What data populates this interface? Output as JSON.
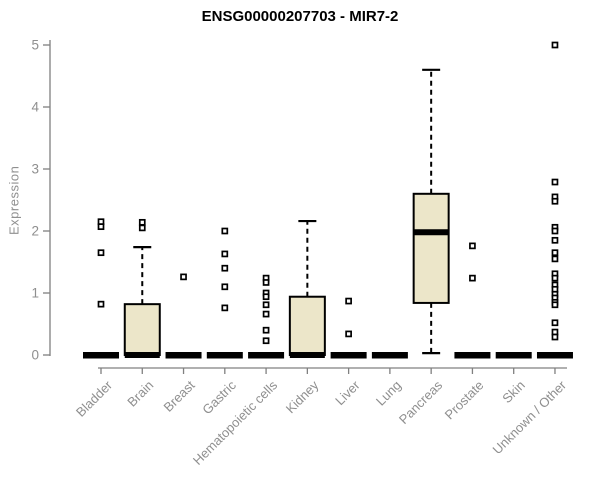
{
  "title": "ENSG00000207703 - MIR7-2",
  "ylabel": "Expression",
  "colors": {
    "background": "#ffffff",
    "title": "#000000",
    "axis_line": "#808080",
    "tick_label": "#8f8f8f",
    "box_fill": "#ece6c9",
    "box_border": "#000000",
    "median": "#000000",
    "outlier": "#000000"
  },
  "chart_data": {
    "type": "boxplot",
    "title": "ENSG00000207703 - MIR7-2",
    "xlabel": "",
    "ylabel": "Expression",
    "ylim": [
      0,
      5
    ],
    "yticks": [
      0,
      1,
      2,
      3,
      4,
      5
    ],
    "grid": false,
    "legend": false,
    "categories": [
      "Bladder",
      "Brain",
      "Breast",
      "Gastric",
      "Hematopoietic cells",
      "Kidney",
      "Liver",
      "Lung",
      "Pancreas",
      "Prostate",
      "Skin",
      "Unknown / Other"
    ],
    "boxes": [
      {
        "category": "Bladder",
        "q1": 0,
        "median": 0,
        "q3": 0,
        "whisker_low": 0,
        "whisker_high": 0,
        "outliers": [
          2.15,
          2.07,
          1.65,
          0.82
        ]
      },
      {
        "category": "Brain",
        "q1": 0,
        "median": 0,
        "q3": 0.82,
        "whisker_low": 0,
        "whisker_high": 1.74,
        "outliers": [
          2.14,
          2.05
        ]
      },
      {
        "category": "Breast",
        "q1": 0,
        "median": 0,
        "q3": 0,
        "whisker_low": 0,
        "whisker_high": 0,
        "outliers": [
          1.26
        ]
      },
      {
        "category": "Gastric",
        "q1": 0,
        "median": 0,
        "q3": 0,
        "whisker_low": 0,
        "whisker_high": 0,
        "outliers": [
          2.0,
          1.63,
          1.4,
          1.1,
          0.76
        ]
      },
      {
        "category": "Hematopoietic cells",
        "q1": 0,
        "median": 0,
        "q3": 0,
        "whisker_low": 0,
        "whisker_high": 0,
        "outliers": [
          1.24,
          1.17,
          1.0,
          0.94,
          0.81,
          0.66,
          0.4,
          0.23
        ]
      },
      {
        "category": "Kidney",
        "q1": 0,
        "median": 0,
        "q3": 0.94,
        "whisker_low": 0,
        "whisker_high": 2.16,
        "outliers": []
      },
      {
        "category": "Liver",
        "q1": 0,
        "median": 0,
        "q3": 0,
        "whisker_low": 0,
        "whisker_high": 0,
        "outliers": [
          0.87,
          0.34
        ]
      },
      {
        "category": "Lung",
        "q1": 0,
        "median": 0,
        "q3": 0,
        "whisker_low": 0,
        "whisker_high": 0,
        "outliers": []
      },
      {
        "category": "Pancreas",
        "q1": 0.84,
        "median": 1.98,
        "q3": 2.6,
        "whisker_low": 0.03,
        "whisker_high": 4.6,
        "outliers": []
      },
      {
        "category": "Prostate",
        "q1": 0,
        "median": 0,
        "q3": 0,
        "whisker_low": 0,
        "whisker_high": 0,
        "outliers": [
          1.76,
          1.24
        ]
      },
      {
        "category": "Skin",
        "q1": 0,
        "median": 0,
        "q3": 0,
        "whisker_low": 0,
        "whisker_high": 0,
        "outliers": []
      },
      {
        "category": "Unknown / Other",
        "q1": 0,
        "median": 0,
        "q3": 0,
        "whisker_low": 0,
        "whisker_high": 0,
        "outliers": [
          5.0,
          2.79,
          2.55,
          2.48,
          2.06,
          2.0,
          1.85,
          1.65,
          1.55,
          1.31,
          1.24,
          1.13,
          1.06,
          0.98,
          0.92,
          0.85,
          0.81,
          0.52,
          0.37,
          0.29
        ]
      }
    ]
  }
}
